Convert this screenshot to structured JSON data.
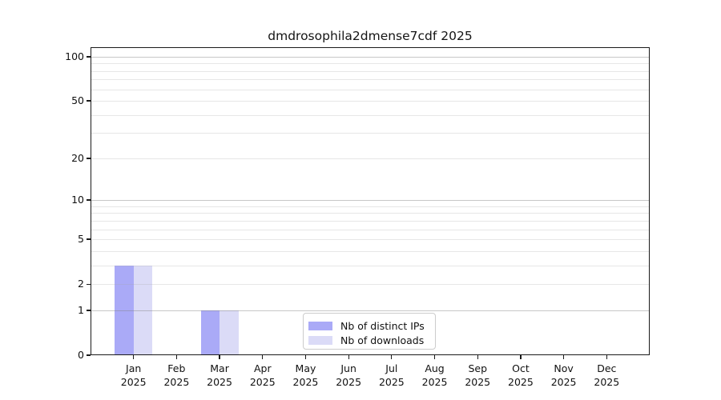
{
  "chart_data": {
    "type": "bar",
    "title": "dmdrosophila2dmense7cdf 2025",
    "categories": [
      "Jan 2025",
      "Feb 2025",
      "Mar 2025",
      "Apr 2025",
      "May 2025",
      "Jun 2025",
      "Jul 2025",
      "Aug 2025",
      "Sep 2025",
      "Oct 2025",
      "Nov 2025",
      "Dec 2025"
    ],
    "series": [
      {
        "name": "Nb of distinct IPs",
        "color": "#aaaaf7",
        "values": [
          3,
          0,
          1,
          0,
          0,
          0,
          0,
          0,
          0,
          0,
          0,
          0
        ]
      },
      {
        "name": "Nb of downloads",
        "color": "#dbdbf7",
        "values": [
          3,
          0,
          1,
          0,
          0,
          0,
          0,
          0,
          0,
          0,
          0,
          0
        ]
      }
    ],
    "xlabel": "",
    "ylabel": "",
    "yscale": "log1p",
    "ylim": [
      0,
      116
    ],
    "yticks": [
      100,
      50,
      20,
      10,
      5,
      2,
      1,
      0
    ],
    "grid_major": [
      1,
      10,
      100
    ],
    "grid_minor": [
      2,
      3,
      4,
      5,
      6,
      7,
      8,
      9,
      20,
      30,
      40,
      50,
      60,
      70,
      80,
      90
    ],
    "grid": "on",
    "legend_position": "lower center"
  },
  "colors": {
    "background": "#ffffff",
    "spine": "#1a1a1a",
    "grid_major": "#c6c6c6",
    "grid_minor": "#e9e9e9",
    "text": "#111111"
  }
}
